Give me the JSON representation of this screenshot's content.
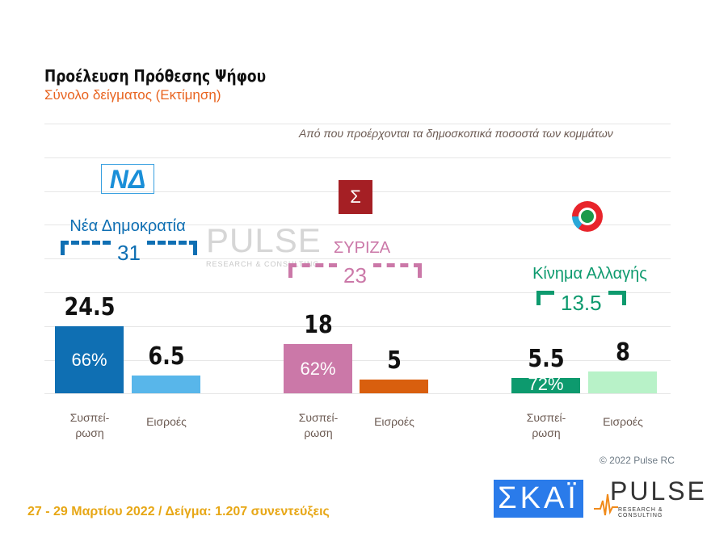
{
  "chart_data": {
    "type": "bar",
    "title": "Προέλευση Πρόθεσης Ψήφου",
    "subtitle": "Σύνολο δείγματος   (Εκτίμηση)",
    "note": "Από που προέρχονται τα δημοσκοπικά ποσοστά των κομμάτων",
    "categories": [
      "Συσπεί-ρωση",
      "Εισροές"
    ],
    "groups": [
      {
        "party": "Νέα Δημοκρατία",
        "total": "31",
        "color": "#0f6fb3",
        "logo": "nd-logo",
        "values": [
          24.5,
          6.5
        ],
        "labels": [
          "24.5",
          "6.5"
        ],
        "retention_pct": "66%",
        "colors": [
          "#0f6fb3",
          "#58b6ea"
        ]
      },
      {
        "party": "ΣΥΡΙΖΑ",
        "total": "23",
        "color": "#cb78a8",
        "logo": "syriza-logo",
        "values": [
          18,
          5
        ],
        "labels": [
          "18",
          "5"
        ],
        "retention_pct": "62%",
        "colors": [
          "#cb78a8",
          "#d95f0e"
        ]
      },
      {
        "party": "Κίνημα Αλλαγής",
        "total": "13.5",
        "color": "#0d9a6e",
        "logo": "kinal-logo",
        "values": [
          5.5,
          8
        ],
        "labels": [
          "5.5",
          "8"
        ],
        "retention_pct": "72%",
        "colors": [
          "#0d9a6e",
          "#b8f2c8"
        ]
      }
    ],
    "grid": true
  },
  "cat_labels": {
    "retention_1": "Συσπεί-",
    "retention_2": "ρωση",
    "inflows": "Εισροές"
  },
  "copyright": "© 2022 Pulse RC",
  "footer": "27 - 29 Μαρτίου  2022  /  Δείγμα:  1.207 συνεντεύξεις",
  "logos": {
    "skai": "ΣΚΑΪ",
    "pulse": "PULSE",
    "pulse_sub": "RESEARCH & CONSULTING",
    "nd": "ΝΔ",
    "syriza": "Σ"
  }
}
